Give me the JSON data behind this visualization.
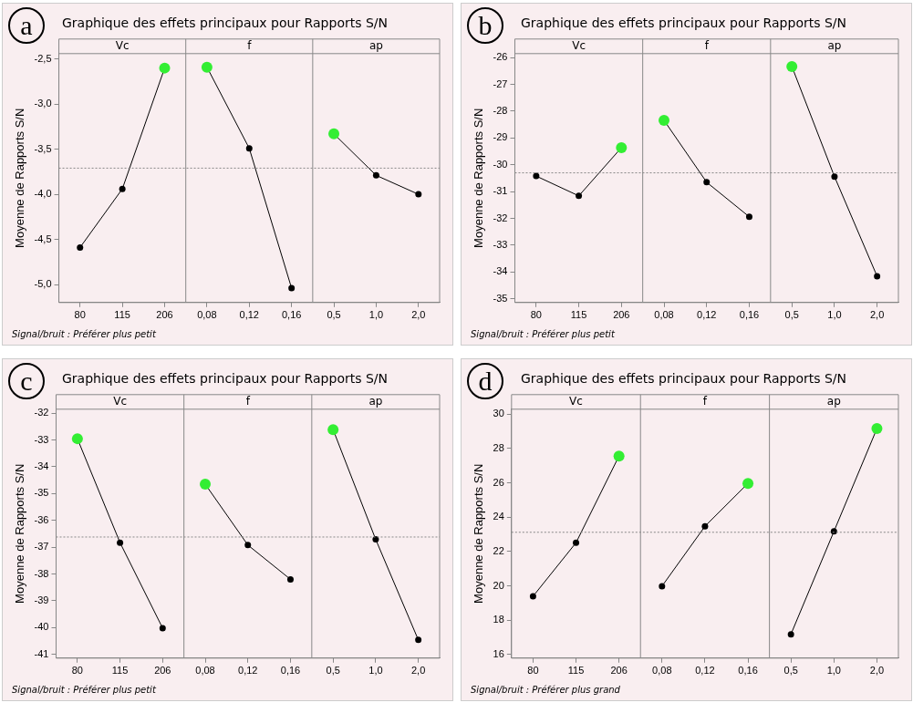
{
  "chart_data": [
    {
      "type": "line",
      "title": "Graphique des effets principaux pour Rapports S/N",
      "ylabel": "Moyenne de Rapports S/N",
      "categories": [
        "80",
        "115",
        "206",
        "0,08",
        "0,12",
        "0,16",
        "0,5",
        "1,0",
        "2,0"
      ],
      "series": [
        {
          "color": "#000000",
          "colors": [
            "#000000",
            "#000000",
            "#33ee33",
            null,
            null,
            null,
            null,
            null,
            null
          ],
          "values": [
            -4.59,
            -3.94,
            -2.6,
            null,
            null,
            null,
            null,
            null,
            null
          ]
        },
        {
          "color": "#000000",
          "colors": [
            null,
            null,
            null,
            "#33ee33",
            "#000000",
            "#000000",
            null,
            null,
            null
          ],
          "values": [
            null,
            null,
            null,
            -2.59,
            -3.49,
            -5.04,
            null,
            null,
            null
          ]
        },
        {
          "color": "#000000",
          "colors": [
            null,
            null,
            null,
            null,
            null,
            null,
            "#33ee33",
            "#000000",
            "#000000"
          ],
          "values": [
            null,
            null,
            null,
            null,
            null,
            null,
            -3.33,
            -3.79,
            -4.0
          ]
        }
      ],
      "ylim": [
        -5.2,
        -2.44
      ],
      "yticks": [
        {
          "value": -2.5,
          "label": "-2,5"
        },
        {
          "value": -3.0,
          "label": "-3,0"
        },
        {
          "value": -3.5,
          "label": "-3,5"
        },
        {
          "value": -4.0,
          "label": "-4,0"
        },
        {
          "value": -4.5,
          "label": "-4,5"
        },
        {
          "value": -5.0,
          "label": "-5,0"
        }
      ],
      "ref_lines": [
        {
          "axis": "y",
          "value": -3.71,
          "color": "#888888",
          "line_style": "dotted"
        }
      ],
      "annotations": [
        "a",
        "Vc",
        "f",
        "ap",
        "Signal/bruit : Préférer plus petit"
      ],
      "grid": false,
      "legend": false,
      "marker": "circle",
      "line_style": "solid"
    },
    {
      "type": "line",
      "title": "Graphique des effets principaux pour Rapports S/N",
      "ylabel": "Moyenne de Rapports S/N",
      "categories": [
        "80",
        "115",
        "206",
        "0,08",
        "0,12",
        "0,16",
        "0,5",
        "1,0",
        "2,0"
      ],
      "series": [
        {
          "color": "#000000",
          "colors": [
            "#000000",
            "#000000",
            "#33ee33",
            null,
            null,
            null,
            null,
            null,
            null
          ],
          "values": [
            -30.42,
            -31.16,
            -29.36,
            null,
            null,
            null,
            null,
            null,
            null
          ]
        },
        {
          "color": "#000000",
          "colors": [
            null,
            null,
            null,
            "#33ee33",
            "#000000",
            "#000000",
            null,
            null,
            null
          ],
          "values": [
            null,
            null,
            null,
            -28.34,
            -30.65,
            -31.94,
            null,
            null,
            null
          ]
        },
        {
          "color": "#000000",
          "colors": [
            null,
            null,
            null,
            null,
            null,
            null,
            "#33ee33",
            "#000000",
            "#000000"
          ],
          "values": [
            null,
            null,
            null,
            null,
            null,
            null,
            -26.33,
            -30.44,
            -34.16
          ]
        }
      ],
      "ylim": [
        -35.14,
        -25.85
      ],
      "yticks": [
        -26,
        -27,
        -28,
        -29,
        -30,
        -31,
        -32,
        -33,
        -34,
        -35
      ],
      "ref_lines": [
        {
          "axis": "y",
          "value": -30.3,
          "color": "#888888",
          "line_style": "dotted"
        }
      ],
      "annotations": [
        "b",
        "Vc",
        "f",
        "ap",
        "Signal/bruit : Préférer plus petit"
      ],
      "grid": false,
      "legend": false,
      "marker": "circle",
      "line_style": "solid"
    },
    {
      "type": "line",
      "title": "Graphique des effets principaux pour Rapports S/N",
      "ylabel": "Moyenne de Rapports S/N",
      "categories": [
        "80",
        "115",
        "206",
        "0,08",
        "0,12",
        "0,16",
        "0,5",
        "1,0",
        "2,0"
      ],
      "series": [
        {
          "color": "#000000",
          "colors": [
            "#33ee33",
            "#000000",
            "#000000",
            null,
            null,
            null,
            null,
            null,
            null
          ],
          "values": [
            -32.95,
            -36.83,
            -40.02,
            null,
            null,
            null,
            null,
            null,
            null
          ]
        },
        {
          "color": "#000000",
          "colors": [
            null,
            null,
            null,
            "#33ee33",
            "#000000",
            "#000000",
            null,
            null,
            null
          ],
          "values": [
            null,
            null,
            null,
            -34.65,
            -36.92,
            -38.2,
            null,
            null,
            null
          ]
        },
        {
          "color": "#000000",
          "colors": [
            null,
            null,
            null,
            null,
            null,
            null,
            "#33ee33",
            "#000000",
            "#000000"
          ],
          "values": [
            null,
            null,
            null,
            null,
            null,
            null,
            -32.61,
            -36.71,
            -40.46
          ]
        }
      ],
      "ylim": [
        -41.14,
        -31.85
      ],
      "yticks": [
        -32,
        -33,
        -34,
        -35,
        -36,
        -37,
        -38,
        -39,
        -40,
        -41
      ],
      "ref_lines": [
        {
          "axis": "y",
          "value": -36.62,
          "color": "#888888",
          "line_style": "dotted"
        }
      ],
      "annotations": [
        "c",
        "Vc",
        "f",
        "ap",
        "Signal/bruit : Préférer plus petit"
      ],
      "grid": false,
      "legend": false,
      "marker": "circle",
      "line_style": "solid"
    },
    {
      "type": "line",
      "title": "Graphique des effets principaux pour Rapports S/N",
      "ylabel": "Moyenne de Rapports S/N",
      "categories": [
        "80",
        "115",
        "206",
        "0,08",
        "0,12",
        "0,16",
        "0,5",
        "1,0",
        "2,0"
      ],
      "series": [
        {
          "color": "#000000",
          "colors": [
            "#000000",
            "#000000",
            "#33ee33",
            null,
            null,
            null,
            null,
            null,
            null
          ],
          "values": [
            19.39,
            22.51,
            27.56,
            null,
            null,
            null,
            null,
            null,
            null
          ]
        },
        {
          "color": "#000000",
          "colors": [
            null,
            null,
            null,
            "#000000",
            "#000000",
            "#33ee33",
            null,
            null,
            null
          ],
          "values": [
            null,
            null,
            null,
            19.98,
            23.47,
            25.97,
            null,
            null,
            null
          ]
        },
        {
          "color": "#000000",
          "colors": [
            null,
            null,
            null,
            null,
            null,
            null,
            "#000000",
            "#000000",
            "#33ee33"
          ],
          "values": [
            null,
            null,
            null,
            null,
            null,
            null,
            17.18,
            23.17,
            29.16
          ]
        }
      ],
      "ylim": [
        15.79,
        30.29
      ],
      "yticks": [
        16,
        18,
        20,
        22,
        24,
        26,
        28,
        30
      ],
      "ref_lines": [
        {
          "axis": "y",
          "value": 23.12,
          "color": "#888888",
          "line_style": "dotted"
        }
      ],
      "annotations": [
        "d",
        "Vc",
        "f",
        "ap",
        "Signal/bruit : Préférer plus grand"
      ],
      "grid": false,
      "legend": false,
      "marker": "circle",
      "line_style": "solid"
    }
  ]
}
